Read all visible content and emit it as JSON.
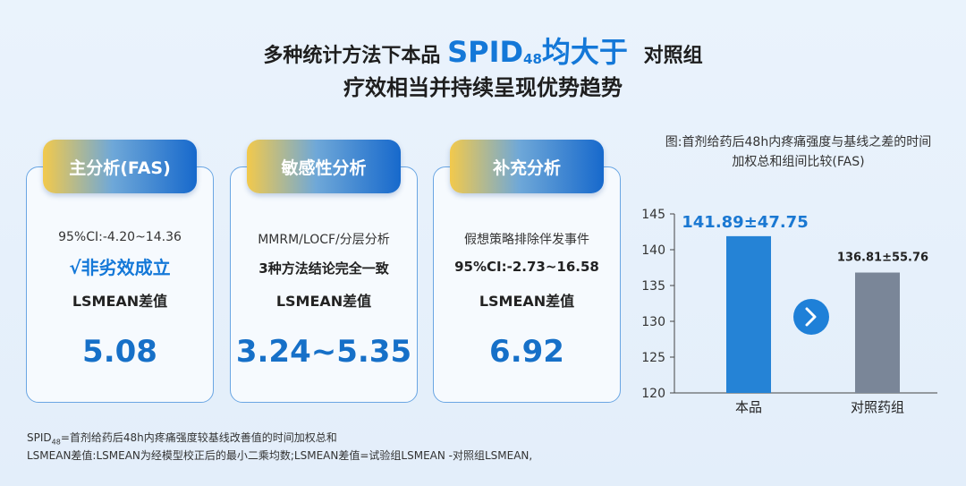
{
  "heading": {
    "line1_pre": "多种统计方法下本品",
    "line1_hl": "SPID",
    "line1_sub": "48",
    "line1_hl2": "均大于",
    "line1_post": "对照组",
    "line2": "疗效相当并持续呈现优势趋势"
  },
  "cards": [
    {
      "header": "主分析(FAS)",
      "line1": "95%CI:-4.20~14.36",
      "line2": "√非劣效成立",
      "line3": "LSMEAN差值",
      "value": "5.08"
    },
    {
      "header": "敏感性分析",
      "line1": "MMRM/LOCF/分层分析",
      "line2": "3种方法结论完全一致",
      "line3": "LSMEAN差值",
      "value": "3.24~5.35"
    },
    {
      "header": "补充分析",
      "line1": "假想策略排除伴发事件",
      "line2": "95%CI:-2.73~16.58",
      "line3": "LSMEAN差值",
      "value": "6.92"
    }
  ],
  "chart_title": "图:首剂给药后48h内疼痛强度与基线之差的时间加权总和组间比较(FAS)",
  "chart_data": {
    "type": "bar",
    "title": "图:首剂给药后48h内疼痛强度与基线之差的时间加权总和组间比较(FAS)",
    "categories": [
      "本品",
      "对照药组"
    ],
    "values": [
      141.89,
      136.81
    ],
    "labels": [
      "141.89±47.75",
      "136.81±55.76"
    ],
    "ylim": [
      120,
      145
    ],
    "yticks": [
      120,
      125,
      130,
      135,
      140,
      145
    ],
    "colors": [
      "#2583d6",
      "#7a8698"
    ],
    "label_colors": [
      "#1a78d2",
      "#222222"
    ],
    "grid": false
  },
  "footnotes": {
    "line1_pre": "SPID",
    "line1_sub": "48",
    "line1_post": "=首剂给药后48h内疼痛强度较基线改善值的时间加权总和",
    "line2": "LSMEAN差值:LSMEAN为经模型校正后的最小二乘均数;LSMEAN差值=试验组LSMEAN -对照组LSMEAN,"
  },
  "colors": {
    "accent": "#1478d8"
  },
  "icons": {
    "compare": "chevron-right-circle-icon"
  }
}
